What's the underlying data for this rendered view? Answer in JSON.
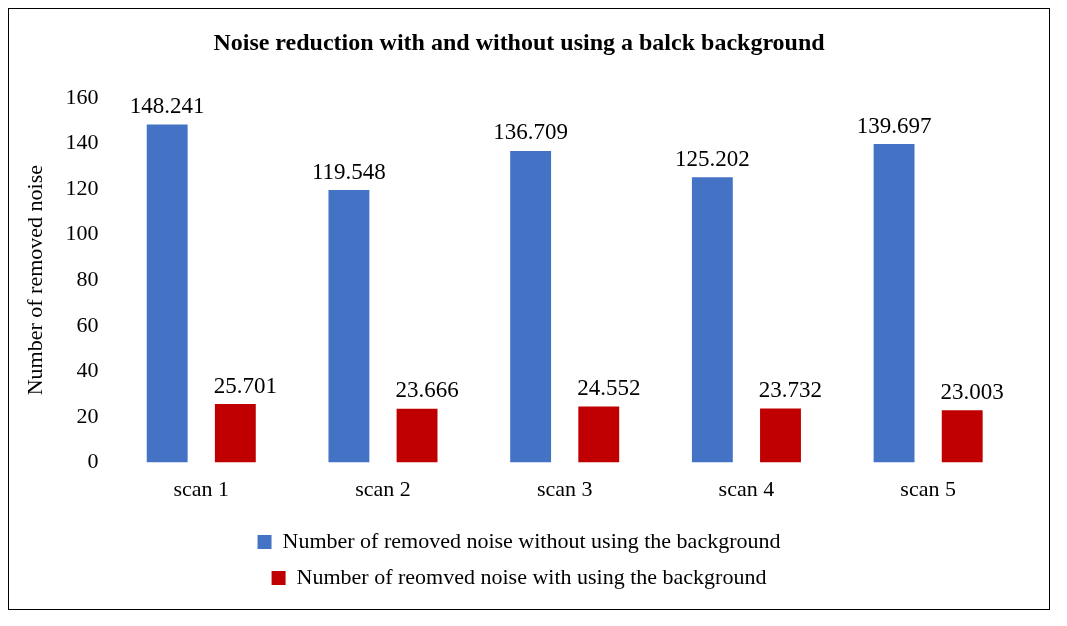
{
  "chart_data": {
    "type": "bar",
    "title": "Noise reduction with and without using a balck background",
    "ylabel": "Number of removed noise",
    "categories": [
      "scan 1",
      "scan 2",
      "scan 3",
      "scan 4",
      "scan 5"
    ],
    "series": [
      {
        "name": "Number of removed noise without using the background",
        "color": "#4472c4",
        "values": [
          148.241,
          119.548,
          136.709,
          125.202,
          139.697
        ]
      },
      {
        "name": "Number of reomved noise with using the background",
        "color": "#c00000",
        "values": [
          25.701,
          23.666,
          24.552,
          23.732,
          23.003
        ]
      }
    ],
    "ylim": [
      0,
      160
    ],
    "yticks": [
      0,
      20,
      40,
      60,
      80,
      100,
      120,
      140,
      160
    ],
    "grid": false,
    "legend": "bottom",
    "data_labels": true
  }
}
